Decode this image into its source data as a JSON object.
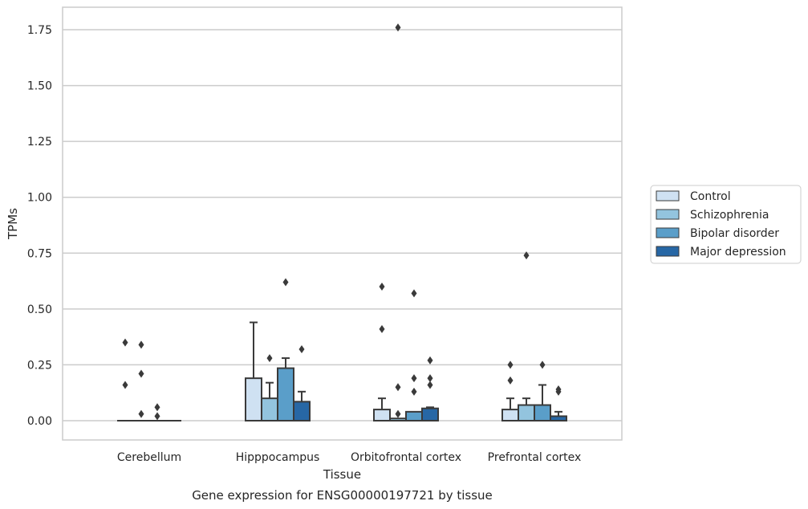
{
  "chart_data": {
    "type": "box",
    "title": "",
    "caption": "Gene expression for ENSG00000197721 by tissue",
    "xlabel": "Tissue",
    "ylabel": "TPMs",
    "ylim": [
      -0.085,
      1.85
    ],
    "yticks": [
      0.0,
      0.25,
      0.5,
      0.75,
      1.0,
      1.25,
      1.5,
      1.75
    ],
    "ytick_labels": [
      "0.00",
      "0.25",
      "0.50",
      "0.75",
      "1.00",
      "1.25",
      "1.50",
      "1.75"
    ],
    "grid": true,
    "legend_placement": "right, outside plot",
    "categories": [
      "Cerebellum",
      "Hipppocampus",
      "Orbitofrontal cortex",
      "Prefrontal cortex"
    ],
    "series": [
      {
        "name": "Control",
        "color": "#cfe1f2",
        "boxes": [
          {
            "whislo": 0.0,
            "q1": 0.0,
            "med": 0.0,
            "q3": 0.0,
            "whishi": 0.0,
            "fliers": [
              0.35,
              0.16
            ]
          },
          {
            "whislo": 0.0,
            "q1": 0.0,
            "med": 0.0,
            "q3": 0.19,
            "whishi": 0.44,
            "fliers": []
          },
          {
            "whislo": 0.0,
            "q1": 0.0,
            "med": 0.0,
            "q3": 0.05,
            "whishi": 0.1,
            "fliers": [
              0.6,
              0.41
            ]
          },
          {
            "whislo": 0.0,
            "q1": 0.0,
            "med": 0.0,
            "q3": 0.05,
            "whishi": 0.1,
            "fliers": [
              0.25,
              0.18
            ]
          }
        ]
      },
      {
        "name": "Schizophrenia",
        "color": "#93c4de",
        "boxes": [
          {
            "whislo": 0.0,
            "q1": 0.0,
            "med": 0.0,
            "q3": 0.0,
            "whishi": 0.0,
            "fliers": [
              0.34,
              0.21,
              0.03
            ]
          },
          {
            "whislo": 0.0,
            "q1": 0.0,
            "med": 0.0,
            "q3": 0.1,
            "whishi": 0.17,
            "fliers": [
              0.28
            ]
          },
          {
            "whislo": 0.0,
            "q1": 0.0,
            "med": 0.0,
            "q3": 0.01,
            "whishi": 0.01,
            "fliers": [
              1.76,
              0.15,
              0.03
            ]
          },
          {
            "whislo": 0.0,
            "q1": 0.0,
            "med": 0.0,
            "q3": 0.07,
            "whishi": 0.1,
            "fliers": [
              0.74
            ]
          }
        ]
      },
      {
        "name": "Bipolar disorder",
        "color": "#5a9ec9",
        "boxes": [
          {
            "whislo": 0.0,
            "q1": 0.0,
            "med": 0.0,
            "q3": 0.0,
            "whishi": 0.0,
            "fliers": [
              0.06,
              0.02
            ]
          },
          {
            "whislo": 0.0,
            "q1": 0.0,
            "med": 0.0,
            "q3": 0.235,
            "whishi": 0.28,
            "fliers": [
              0.62
            ]
          },
          {
            "whislo": 0.0,
            "q1": 0.0,
            "med": 0.0,
            "q3": 0.04,
            "whishi": 0.04,
            "fliers": [
              0.57,
              0.19,
              0.13
            ]
          },
          {
            "whislo": 0.0,
            "q1": 0.0,
            "med": 0.0,
            "q3": 0.07,
            "whishi": 0.16,
            "fliers": [
              0.25
            ]
          }
        ]
      },
      {
        "name": "Major depression",
        "color": "#2767a5",
        "boxes": [
          {
            "whislo": 0.0,
            "q1": 0.0,
            "med": 0.0,
            "q3": 0.0,
            "whishi": 0.0,
            "fliers": []
          },
          {
            "whislo": 0.0,
            "q1": 0.0,
            "med": 0.0,
            "q3": 0.085,
            "whishi": 0.13,
            "fliers": [
              0.32
            ]
          },
          {
            "whislo": 0.0,
            "q1": 0.0,
            "med": 0.0,
            "q3": 0.055,
            "whishi": 0.06,
            "fliers": [
              0.27,
              0.19,
              0.16
            ]
          },
          {
            "whislo": 0.0,
            "q1": 0.0,
            "med": 0.0,
            "q3": 0.02,
            "whishi": 0.04,
            "fliers": [
              0.14,
              0.13
            ]
          }
        ]
      }
    ]
  }
}
